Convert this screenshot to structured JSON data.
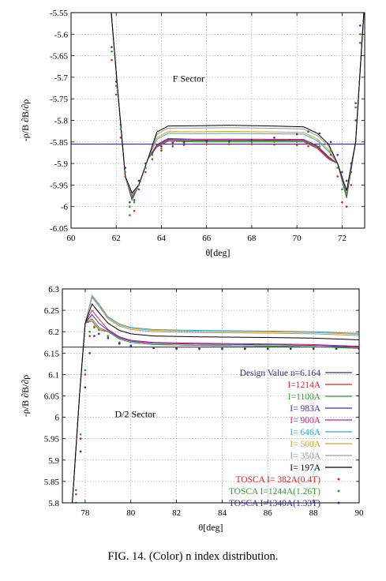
{
  "caption": "FIG. 14. (Color) n index distribution.",
  "chart_data": [
    {
      "type": "line",
      "title": "",
      "annotation": "F Sector",
      "xlabel": "θ[deg]",
      "ylabel": "-ρ/B ∂B/∂ρ",
      "xlim": [
        60,
        73
      ],
      "ylim": [
        -6.05,
        -5.55
      ],
      "xticks": [
        60,
        62,
        64,
        66,
        68,
        70,
        72
      ],
      "yticks": [
        -6.05,
        -6.0,
        -5.95,
        -5.9,
        -5.85,
        -5.8,
        -5.75,
        -5.7,
        -5.65,
        -5.6,
        -5.55
      ],
      "ytick_labels": [
        "-6.05",
        "-6",
        "-5.95",
        "-5.9",
        "-5.85",
        "-5.8",
        "-5.75",
        "-5.7",
        "-5.65",
        "-5.6",
        "-5.55"
      ],
      "grid": true,
      "legend": "none",
      "design_value": -5.855,
      "series": [
        {
          "color": "#d62728",
          "flat": -5.85,
          "valley": -5.985
        },
        {
          "color": "#2ca02c",
          "flat": -5.848,
          "valley": -5.985
        },
        {
          "color": "#4b2c9a",
          "flat": -5.846,
          "valley": -5.98
        },
        {
          "color": "#c0208f",
          "flat": -5.844,
          "valley": -5.978
        },
        {
          "color": "#30a8d8",
          "flat": -5.832,
          "valley": -5.975
        },
        {
          "color": "#d4a017",
          "flat": -5.828,
          "valley": -5.972
        },
        {
          "color": "#9a9a9a",
          "flat": -5.82,
          "valley": -5.97
        },
        {
          "color": "#000000",
          "flat": -5.815,
          "valley": -5.968
        }
      ],
      "dotted_series": [
        {
          "color": "#d62728",
          "x": [
            61.8,
            62.0,
            62.2,
            62.4,
            62.6,
            62.8,
            63.0,
            63.3,
            63.6,
            64.0,
            64.5,
            65,
            66,
            67,
            68,
            69,
            70,
            70.5,
            71,
            71.5,
            71.8,
            72.0,
            72.2,
            72.4,
            72.6,
            72.8
          ],
          "y": [
            -5.66,
            -5.74,
            -5.84,
            -5.93,
            -6.02,
            -6.01,
            -5.96,
            -5.92,
            -5.89,
            -5.87,
            -5.86,
            -5.857,
            -5.855,
            -5.855,
            -5.855,
            -5.856,
            -5.857,
            -5.86,
            -5.865,
            -5.88,
            -5.93,
            -5.99,
            -6.0,
            -5.95,
            -5.8,
            -5.62
          ]
        },
        {
          "color": "#2ca02c",
          "x": [
            61.8,
            62.0,
            62.2,
            62.4,
            62.6,
            62.8,
            63.0,
            63.3,
            63.6,
            64.0,
            64.5,
            65,
            66,
            67,
            68,
            69,
            70,
            70.5,
            71,
            71.5,
            71.8,
            72.0,
            72.2,
            72.4,
            72.6,
            72.8
          ],
          "y": [
            -5.64,
            -5.72,
            -5.82,
            -5.92,
            -6.0,
            -5.99,
            -5.95,
            -5.91,
            -5.88,
            -5.865,
            -5.855,
            -5.852,
            -5.85,
            -5.85,
            -5.85,
            -5.85,
            -5.85,
            -5.852,
            -5.86,
            -5.87,
            -5.91,
            -5.96,
            -5.97,
            -5.92,
            -5.77,
            -5.6
          ]
        },
        {
          "color": "#4b2c9a",
          "x": [
            61.8,
            62.0,
            62.2,
            62.4,
            62.6,
            62.8,
            63.0,
            63.3,
            63.6,
            64.0,
            64.5,
            65,
            66,
            67,
            68,
            69,
            70,
            70.5,
            71,
            71.5,
            71.8,
            72.0,
            72.2,
            72.4,
            72.6,
            72.8
          ],
          "y": [
            -5.63,
            -5.71,
            -5.81,
            -5.91,
            -5.99,
            -5.985,
            -5.94,
            -5.9,
            -5.875,
            -5.86,
            -5.852,
            -5.85,
            -5.848,
            -5.848,
            -5.845,
            -5.84,
            -5.832,
            -5.826,
            -5.83,
            -5.85,
            -5.88,
            -5.92,
            -5.94,
            -5.9,
            -5.76,
            -5.58
          ]
        }
      ]
    },
    {
      "type": "line",
      "title": "",
      "annotation": "D/2 Sector",
      "xlabel": "θ[deg]",
      "ylabel": "-ρ/B ∂B/∂ρ",
      "xlim": [
        77,
        90
      ],
      "ylim": [
        5.8,
        6.3
      ],
      "xticks": [
        78,
        80,
        82,
        84,
        86,
        88,
        90
      ],
      "yticks": [
        5.8,
        5.85,
        5.9,
        5.95,
        6.0,
        6.05,
        6.1,
        6.15,
        6.2,
        6.25,
        6.3
      ],
      "ytick_labels": [
        "5.8",
        "5.85",
        "5.9",
        "5.95",
        "6",
        "6.05",
        "6.1",
        "6.15",
        "6.2",
        "6.25",
        "6.3"
      ],
      "grid": true,
      "legend": "bottom-right",
      "design_value": 6.164,
      "legend_entries": [
        {
          "label": "Design Value n=6.164",
          "color": "#3b2a96",
          "style": "line"
        },
        {
          "label": "I=1214A",
          "color": "#d62728",
          "style": "line"
        },
        {
          "label": "I=1100A",
          "color": "#2ca02c",
          "style": "line"
        },
        {
          "label": "I= 983A",
          "color": "#4b2c9a",
          "style": "line"
        },
        {
          "label": "I= 900A",
          "color": "#c0208f",
          "style": "line"
        },
        {
          "label": "I= 646A",
          "color": "#30a8d8",
          "style": "line"
        },
        {
          "label": "I= 500A",
          "color": "#d4a017",
          "style": "line"
        },
        {
          "label": "I= 350A",
          "color": "#9a9a9a",
          "style": "line"
        },
        {
          "label": "I= 197A",
          "color": "#000000",
          "style": "line"
        },
        {
          "label": "TOSCA I= 382A(0.4T)",
          "color": "#d62728",
          "style": "dot"
        },
        {
          "label": "TOSCA I=1244A(1.26T)",
          "color": "#2ca02c",
          "style": "dot"
        },
        {
          "label": "TOSCA I=1340A(1.33T)",
          "color": "#3b2a96",
          "style": "dot"
        }
      ],
      "series": [
        {
          "color": "#d62728",
          "peak": 6.225,
          "flat": 6.165
        },
        {
          "color": "#2ca02c",
          "peak": 6.23,
          "flat": 6.165
        },
        {
          "color": "#4b2c9a",
          "peak": 6.24,
          "flat": 6.168
        },
        {
          "color": "#c0208f",
          "peak": 6.25,
          "flat": 6.17
        },
        {
          "color": "#30a8d8",
          "peak": 6.285,
          "flat": 6.2
        },
        {
          "color": "#d4a017",
          "peak": 6.282,
          "flat": 6.198
        },
        {
          "color": "#9a9a9a",
          "peak": 6.28,
          "flat": 6.195
        },
        {
          "color": "#000000",
          "peak": 6.265,
          "flat": 6.185
        }
      ],
      "dotted_series": [
        {
          "color": "#d62728",
          "x": [
            77.6,
            77.8,
            78.0,
            78.2,
            78.4,
            78.6,
            79.0,
            79.5,
            80,
            81,
            82,
            83,
            84,
            85,
            86,
            87,
            88,
            89,
            90
          ],
          "y": [
            5.82,
            5.95,
            6.1,
            6.19,
            6.21,
            6.205,
            6.19,
            6.175,
            6.168,
            6.162,
            6.16,
            6.16,
            6.16,
            6.16,
            6.16,
            6.16,
            6.16,
            6.16,
            6.16
          ]
        },
        {
          "color": "#2ca02c",
          "x": [
            77.6,
            77.8,
            78.0,
            78.2,
            78.4,
            78.6,
            79.0,
            79.5,
            80,
            81,
            82,
            83,
            84,
            85,
            86,
            87,
            88,
            89,
            90
          ],
          "y": [
            5.83,
            5.96,
            6.11,
            6.2,
            6.212,
            6.205,
            6.19,
            6.175,
            6.168,
            6.163,
            6.162,
            6.162,
            6.162,
            6.162,
            6.162,
            6.162,
            6.162,
            6.162,
            6.162
          ]
        },
        {
          "color": "#3b2a96",
          "x": [
            77.6,
            77.8,
            78.0,
            78.2,
            78.4,
            78.6,
            79.0,
            79.5,
            80,
            81,
            82,
            83,
            84,
            85,
            86,
            87,
            88,
            89,
            90
          ],
          "y": [
            5.8,
            5.92,
            6.07,
            6.15,
            6.19,
            6.195,
            6.185,
            6.172,
            6.166,
            6.162,
            6.161,
            6.16,
            6.16,
            6.16,
            6.16,
            6.16,
            6.16,
            6.16,
            6.16
          ]
        }
      ]
    }
  ]
}
